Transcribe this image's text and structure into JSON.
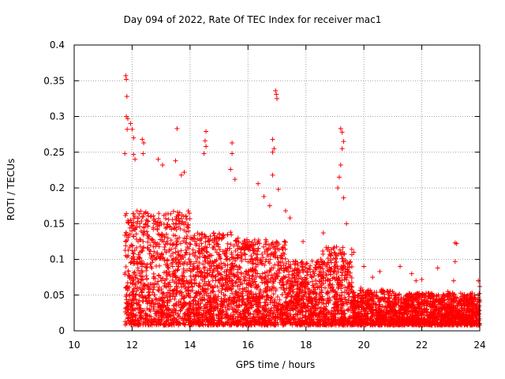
{
  "chart_data": {
    "type": "scatter",
    "title": "Day 094 of 2022, Rate Of TEC Index for receiver mac1",
    "xlabel": "GPS time / hours",
    "ylabel": "ROTI / TECUs",
    "xlim": [
      10,
      24
    ],
    "ylim": [
      0,
      0.4
    ],
    "xticks": [
      "10",
      "12",
      "14",
      "16",
      "18",
      "20",
      "22",
      "24"
    ],
    "yticks": [
      "0",
      "0.05",
      "0.1",
      "0.15",
      "0.2",
      "0.25",
      "0.3",
      "0.35",
      "0.4"
    ],
    "grid": true,
    "marker": "+",
    "color": "#ff0000",
    "series": [
      {
        "name": "ROTI",
        "points": [
          [
            11.78,
            0.357
          ],
          [
            11.8,
            0.352
          ],
          [
            11.82,
            0.328
          ],
          [
            11.8,
            0.3
          ],
          [
            11.85,
            0.297
          ],
          [
            11.83,
            0.282
          ],
          [
            11.95,
            0.29
          ],
          [
            12.0,
            0.282
          ],
          [
            12.05,
            0.27
          ],
          [
            11.75,
            0.248
          ],
          [
            12.05,
            0.247
          ],
          [
            12.1,
            0.24
          ],
          [
            12.35,
            0.268
          ],
          [
            12.4,
            0.263
          ],
          [
            12.38,
            0.248
          ],
          [
            12.9,
            0.24
          ],
          [
            13.05,
            0.232
          ],
          [
            13.55,
            0.283
          ],
          [
            13.5,
            0.238
          ],
          [
            13.7,
            0.218
          ],
          [
            13.8,
            0.222
          ],
          [
            14.55,
            0.279
          ],
          [
            14.52,
            0.266
          ],
          [
            14.55,
            0.258
          ],
          [
            14.48,
            0.248
          ],
          [
            15.45,
            0.263
          ],
          [
            15.45,
            0.248
          ],
          [
            15.4,
            0.226
          ],
          [
            15.55,
            0.212
          ],
          [
            16.35,
            0.206
          ],
          [
            16.55,
            0.188
          ],
          [
            16.75,
            0.175
          ],
          [
            16.85,
            0.268
          ],
          [
            16.9,
            0.255
          ],
          [
            16.85,
            0.25
          ],
          [
            16.95,
            0.336
          ],
          [
            16.98,
            0.331
          ],
          [
            17.0,
            0.325
          ],
          [
            16.85,
            0.218
          ],
          [
            17.05,
            0.198
          ],
          [
            17.3,
            0.168
          ],
          [
            17.45,
            0.158
          ],
          [
            17.9,
            0.125
          ],
          [
            18.6,
            0.137
          ],
          [
            19.2,
            0.283
          ],
          [
            19.25,
            0.278
          ],
          [
            19.3,
            0.265
          ],
          [
            19.25,
            0.255
          ],
          [
            19.2,
            0.232
          ],
          [
            19.15,
            0.215
          ],
          [
            19.1,
            0.2
          ],
          [
            19.3,
            0.186
          ],
          [
            19.4,
            0.15
          ],
          [
            19.65,
            0.11
          ],
          [
            20.0,
            0.09
          ],
          [
            20.55,
            0.083
          ],
          [
            21.25,
            0.09
          ],
          [
            21.65,
            0.08
          ],
          [
            22.0,
            0.072
          ],
          [
            22.55,
            0.088
          ],
          [
            23.15,
            0.123
          ],
          [
            23.2,
            0.122
          ],
          [
            23.15,
            0.097
          ],
          [
            23.95,
            0.07
          ],
          [
            24.0,
            0.062
          ],
          [
            23.1,
            0.07
          ],
          [
            22.9,
            0.055
          ],
          [
            21.8,
            0.07
          ],
          [
            20.3,
            0.075
          ],
          [
            19.9,
            0.06
          ]
        ]
      }
    ]
  }
}
